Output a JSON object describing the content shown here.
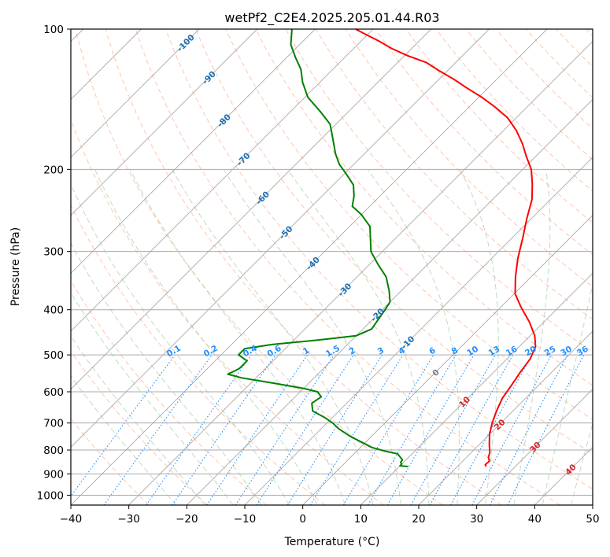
{
  "chart_data": {
    "type": "skew-t",
    "title": "wetPf2_C2E4.2025.205.01.44.R03",
    "xlabel": "Temperature (°C)",
    "ylabel": "Pressure (hPa)",
    "xlim": [
      -40,
      50
    ],
    "ylim": [
      1050,
      100
    ],
    "y_scale": "log",
    "grid": true,
    "x_ticks": [
      -40,
      -30,
      -20,
      -10,
      0,
      10,
      20,
      30,
      40,
      50
    ],
    "x_tick_labels": [
      "−40",
      "−30",
      "−20",
      "−10",
      "0",
      "10",
      "20",
      "30",
      "40",
      "50"
    ],
    "y_ticks": [
      100,
      200,
      300,
      400,
      500,
      600,
      700,
      800,
      900,
      1000
    ],
    "y_tick_labels": [
      "100",
      "200",
      "300",
      "400",
      "500",
      "600",
      "700",
      "800",
      "900",
      "1000"
    ],
    "series": [
      {
        "role": "temperature",
        "color": "#ff0000",
        "points": [
          [
            25.0,
            868
          ],
          [
            24.5,
            860
          ],
          [
            24.6,
            845
          ],
          [
            23.8,
            830
          ],
          [
            23.2,
            810
          ],
          [
            21.8,
            780
          ],
          [
            20.0,
            740
          ],
          [
            18.5,
            700
          ],
          [
            17.2,
            660
          ],
          [
            16.0,
            620
          ],
          [
            15.3,
            580
          ],
          [
            14.6,
            545
          ],
          [
            14.0,
            510
          ],
          [
            12.8,
            480
          ],
          [
            10.8,
            455
          ],
          [
            7.5,
            425
          ],
          [
            3.5,
            395
          ],
          [
            0.2,
            370
          ],
          [
            -2.7,
            340
          ],
          [
            -5.5,
            310
          ],
          [
            -8.2,
            280
          ],
          [
            -10.8,
            255
          ],
          [
            -13.2,
            232
          ],
          [
            -15.8,
            215
          ],
          [
            -18.5,
            200
          ],
          [
            -21.5,
            188
          ],
          [
            -24.5,
            176
          ],
          [
            -27.8,
            165
          ],
          [
            -31.5,
            155
          ],
          [
            -35.5,
            147
          ],
          [
            -39.5,
            140
          ],
          [
            -43.5,
            134
          ],
          [
            -47.5,
            128
          ],
          [
            -51.3,
            123
          ],
          [
            -55.0,
            118
          ],
          [
            -59.5,
            114
          ],
          [
            -63.5,
            110
          ],
          [
            -67.0,
            106
          ],
          [
            -71.0,
            102
          ],
          [
            -73.0,
            100
          ]
        ]
      },
      {
        "role": "dewpoint",
        "color": "#008000",
        "points": [
          [
            11.5,
            868
          ],
          [
            10.0,
            865
          ],
          [
            10.0,
            858
          ],
          [
            9.5,
            850
          ],
          [
            9.4,
            840
          ],
          [
            8.5,
            828
          ],
          [
            7.5,
            815
          ],
          [
            5.0,
            805
          ],
          [
            2.0,
            790
          ],
          [
            -2.0,
            760
          ],
          [
            -4.0,
            745
          ],
          [
            -7.0,
            720
          ],
          [
            -9.0,
            700
          ],
          [
            -11.5,
            680
          ],
          [
            -14.5,
            660
          ],
          [
            -16.0,
            635
          ],
          [
            -15.5,
            615
          ],
          [
            -17.0,
            600
          ],
          [
            -20.0,
            590
          ],
          [
            -26.0,
            575
          ],
          [
            -32.5,
            560
          ],
          [
            -35.5,
            550
          ],
          [
            -34.5,
            535
          ],
          [
            -34.5,
            515
          ],
          [
            -37.0,
            500
          ],
          [
            -37.0,
            485
          ],
          [
            -33.0,
            475
          ],
          [
            -26.0,
            465
          ],
          [
            -20.0,
            455
          ],
          [
            -18.5,
            440
          ],
          [
            -19.0,
            420
          ],
          [
            -19.5,
            400
          ],
          [
            -20.0,
            385
          ],
          [
            -22.0,
            365
          ],
          [
            -25.0,
            340
          ],
          [
            -28.5,
            320
          ],
          [
            -32.0,
            300
          ],
          [
            -34.5,
            280
          ],
          [
            -36.5,
            265
          ],
          [
            -40.0,
            250
          ],
          [
            -43.0,
            240
          ],
          [
            -44.5,
            228
          ],
          [
            -46.5,
            216
          ],
          [
            -49.5,
            205
          ],
          [
            -52.5,
            195
          ],
          [
            -55.0,
            185
          ],
          [
            -58.0,
            172
          ],
          [
            -61.0,
            160
          ],
          [
            -65.0,
            150
          ],
          [
            -69.5,
            140
          ],
          [
            -73.0,
            130
          ],
          [
            -75.5,
            122
          ],
          [
            -78.5,
            115
          ],
          [
            -81.5,
            108
          ],
          [
            -84.0,
            100
          ]
        ]
      }
    ],
    "isotherm_labels": [
      {
        "text": "-100",
        "p": 107
      },
      {
        "text": "-90",
        "p": 127
      },
      {
        "text": "-80",
        "p": 157
      },
      {
        "text": "-70",
        "p": 190
      },
      {
        "text": "-60",
        "p": 230
      },
      {
        "text": "-50",
        "p": 273
      },
      {
        "text": "-40",
        "p": 318
      },
      {
        "text": "-30",
        "p": 362
      },
      {
        "text": "-20",
        "p": 410
      },
      {
        "text": "-10",
        "p": 470
      },
      {
        "text": "0",
        "p": 545
      },
      {
        "text": "10",
        "p": 630
      },
      {
        "text": "20",
        "p": 705
      },
      {
        "text": "30",
        "p": 788
      },
      {
        "text": "40",
        "p": 880
      }
    ],
    "mixing_ratio_labels": [
      "0.1",
      "0.2",
      "0.4",
      "0.6",
      "1",
      "1.5",
      "2",
      "3",
      "4",
      "6",
      "8",
      "10",
      "13",
      "16",
      "20",
      "25",
      "30",
      "36"
    ],
    "mixing_ratio_label_pressure": 500,
    "dry_adiabats_theta_c": [
      -30,
      -20,
      -10,
      0,
      10,
      20,
      30,
      40,
      50,
      60,
      70,
      80,
      90,
      100,
      110,
      120,
      130,
      140,
      150,
      160,
      170,
      180,
      190,
      200,
      210,
      220,
      230,
      240,
      250
    ],
    "moist_adiabats_start_c": [
      -25,
      -20,
      -15,
      -10,
      -5,
      0,
      5,
      10,
      15,
      20,
      25,
      30,
      35,
      40,
      45
    ],
    "colors": {
      "isotherm": "#999999",
      "isotherm_negative_label": "#1f6fb4",
      "isotherm_zero_label": "#808080",
      "isotherm_positive_label": "#d62728",
      "dry_adiabat": "#ffa07a",
      "moist_adiabat": "#8fbc8f",
      "mixing_ratio": "#1e90ff",
      "mixing_ratio_label": "#1e90ff",
      "boundary": "#d2b48c"
    }
  }
}
